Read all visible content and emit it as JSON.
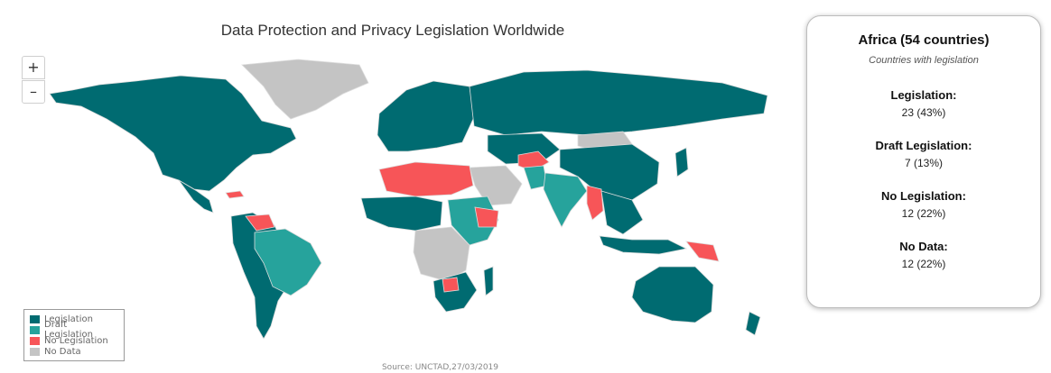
{
  "map": {
    "title": "Data Protection and Privacy Legislation Worldwide",
    "zoom_in_label": "+",
    "zoom_out_label": "–",
    "source": "Source: UNCTAD,27/03/2019",
    "colors": {
      "legislation": "#006b71",
      "draft": "#26a39c",
      "none": "#f75558",
      "nodata": "#c4c4c4",
      "border": "#dcdcdc"
    },
    "legend": [
      {
        "label": "Legislation",
        "color": "#006b71"
      },
      {
        "label": "Draft Legislation",
        "color": "#26a39c"
      },
      {
        "label": "No Legislation",
        "color": "#f75558"
      },
      {
        "label": "No Data",
        "color": "#c4c4c4"
      }
    ]
  },
  "panel": {
    "title": "Africa (54 countries)",
    "subtitle": "Countries with legislation",
    "stats": [
      {
        "label": "Legislation:",
        "value": "23 (43%)"
      },
      {
        "label": "Draft Legislation:",
        "value": "7 (13%)"
      },
      {
        "label": "No Legislation:",
        "value": "12 (22%)"
      },
      {
        "label": "No Data:",
        "value": "12 (22%)"
      }
    ]
  }
}
